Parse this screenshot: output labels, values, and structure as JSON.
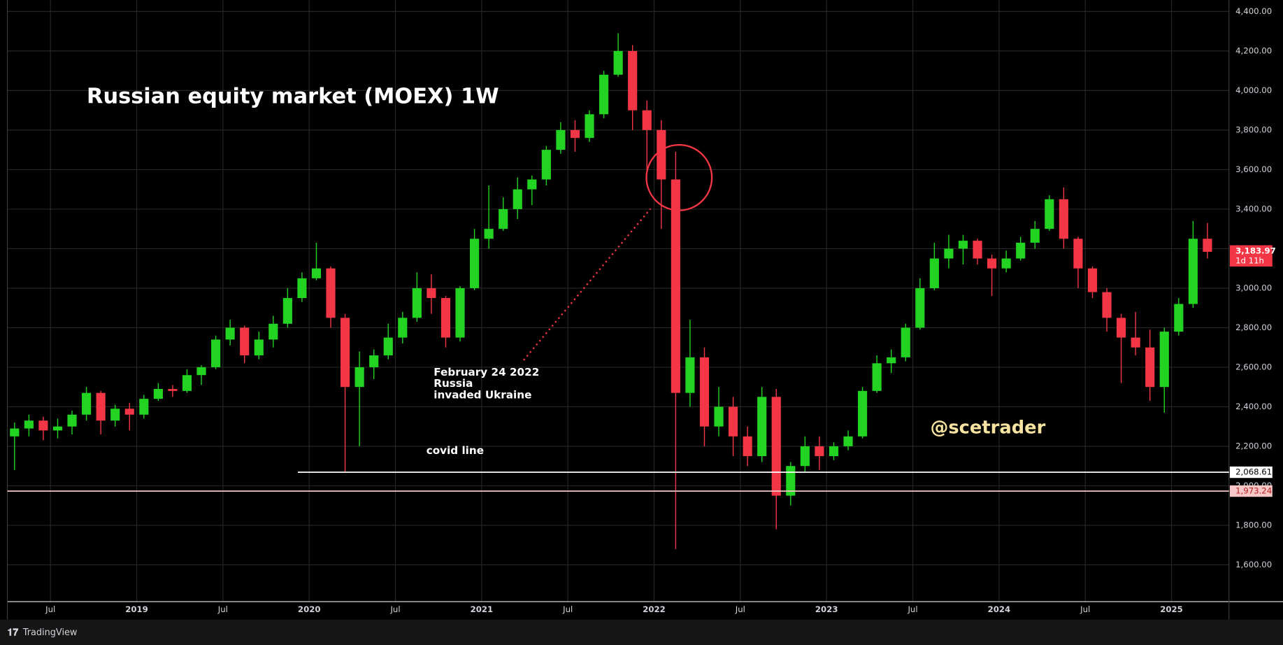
{
  "chart_data": {
    "type": "candlestick",
    "title": "Russian equity market (MOEX) 1W",
    "x": [
      "2018-04",
      "2018-05",
      "2018-06",
      "2018-07",
      "2018-08",
      "2018-09",
      "2018-10",
      "2018-11",
      "2018-12",
      "2019-01",
      "2019-02",
      "2019-03",
      "2019-04",
      "2019-05",
      "2019-06",
      "2019-07",
      "2019-08",
      "2019-09",
      "2019-10",
      "2019-11",
      "2019-12",
      "2020-01",
      "2020-02",
      "2020-03",
      "2020-04",
      "2020-05",
      "2020-06",
      "2020-07",
      "2020-08",
      "2020-09",
      "2020-10",
      "2020-11",
      "2020-12",
      "2021-01",
      "2021-02",
      "2021-03",
      "2021-04",
      "2021-05",
      "2021-06",
      "2021-07",
      "2021-08",
      "2021-09",
      "2021-10",
      "2021-11",
      "2021-12",
      "2022-01",
      "2022-02",
      "2022-03",
      "2022-04",
      "2022-05",
      "2022-06",
      "2022-07",
      "2022-08",
      "2022-09",
      "2022-10",
      "2022-11",
      "2022-12",
      "2023-01",
      "2023-02",
      "2023-03",
      "2023-04",
      "2023-05",
      "2023-06",
      "2023-07",
      "2023-08",
      "2023-09",
      "2023-10",
      "2023-11",
      "2023-12",
      "2024-01",
      "2024-02",
      "2024-03",
      "2024-04",
      "2024-05",
      "2024-06",
      "2024-07",
      "2024-08",
      "2024-09",
      "2024-10",
      "2024-11",
      "2024-12",
      "2025-01",
      "2025-02",
      "2025-03"
    ],
    "open": [
      2250,
      2290,
      2330,
      2280,
      2300,
      2360,
      2470,
      2330,
      2390,
      2360,
      2440,
      2490,
      2480,
      2560,
      2600,
      2740,
      2800,
      2660,
      2740,
      2820,
      2950,
      3050,
      3100,
      2850,
      2500,
      2600,
      2660,
      2750,
      2850,
      3000,
      2950,
      2750,
      3000,
      3250,
      3300,
      3400,
      3500,
      3550,
      3700,
      3800,
      3760,
      3880,
      4080,
      4200,
      3900,
      3800,
      3550,
      2470,
      2650,
      2300,
      2400,
      2250,
      2150,
      2450,
      1950,
      2100,
      2200,
      2150,
      2200,
      2250,
      2480,
      2620,
      2650,
      2800,
      3000,
      3150,
      3200,
      3240,
      3150,
      3100,
      3150,
      3230,
      3300,
      3450,
      3250,
      3100,
      2980,
      2850,
      2750,
      2700,
      2500,
      2780,
      2920,
      3250
    ],
    "high": [
      2320,
      2360,
      2350,
      2340,
      2380,
      2500,
      2480,
      2410,
      2420,
      2460,
      2520,
      2510,
      2590,
      2610,
      2760,
      2840,
      2810,
      2780,
      2860,
      3000,
      3080,
      3230,
      3110,
      2870,
      2680,
      2690,
      2820,
      2880,
      3080,
      3070,
      2960,
      3010,
      3300,
      3520,
      3460,
      3560,
      3570,
      3720,
      3840,
      3850,
      3900,
      4100,
      4290,
      4230,
      3950,
      3850,
      3690,
      2840,
      2700,
      2500,
      2450,
      2300,
      2500,
      2490,
      2120,
      2250,
      2250,
      2220,
      2280,
      2500,
      2660,
      2690,
      2820,
      3050,
      3230,
      3270,
      3270,
      3250,
      3170,
      3190,
      3260,
      3340,
      3470,
      3510,
      3260,
      3110,
      3000,
      2870,
      2880,
      2790,
      2800,
      2950,
      3340,
      3330
    ],
    "low": [
      2080,
      2250,
      2230,
      2240,
      2260,
      2330,
      2260,
      2300,
      2280,
      2340,
      2430,
      2450,
      2470,
      2510,
      2590,
      2710,
      2620,
      2640,
      2700,
      2800,
      2930,
      3040,
      2800,
      2070,
      2200,
      2540,
      2640,
      2720,
      2830,
      2870,
      2700,
      2730,
      2990,
      3200,
      3290,
      3350,
      3420,
      3520,
      3680,
      3690,
      3740,
      3860,
      4070,
      3800,
      3580,
      3300,
      1680,
      2400,
      2200,
      2250,
      2150,
      2100,
      2120,
      1780,
      1900,
      2070,
      2080,
      2130,
      2180,
      2240,
      2470,
      2570,
      2630,
      2790,
      2990,
      3100,
      3120,
      3120,
      2960,
      3080,
      3140,
      3200,
      3290,
      3200,
      3000,
      2950,
      2780,
      2520,
      2660,
      2430,
      2370,
      2760,
      2900,
      3150
    ],
    "close": [
      2290,
      2330,
      2280,
      2300,
      2360,
      2470,
      2330,
      2390,
      2360,
      2440,
      2490,
      2480,
      2560,
      2600,
      2740,
      2800,
      2660,
      2740,
      2820,
      2950,
      3050,
      3100,
      2850,
      2500,
      2600,
      2660,
      2750,
      2850,
      3000,
      2950,
      2750,
      3000,
      3250,
      3300,
      3400,
      3500,
      3550,
      3700,
      3800,
      3760,
      3880,
      4080,
      4200,
      3900,
      3800,
      3550,
      2470,
      2650,
      2300,
      2400,
      2250,
      2150,
      2450,
      1950,
      2100,
      2200,
      2150,
      2200,
      2250,
      2480,
      2620,
      2650,
      2800,
      3000,
      3150,
      3200,
      3240,
      3150,
      3100,
      3150,
      3230,
      3300,
      3450,
      3250,
      3100,
      2980,
      2850,
      2750,
      2700,
      2500,
      2780,
      2920,
      3250,
      3183.97
    ],
    "up_color": "#22d322",
    "down_color": "#f23645",
    "xlim": [
      "2018-04",
      "2025-05"
    ],
    "xticks": [
      {
        "value": "2018-07",
        "label": "Jul"
      },
      {
        "value": "2019-01",
        "label": "2019"
      },
      {
        "value": "2019-07",
        "label": "Jul"
      },
      {
        "value": "2020-01",
        "label": "2020"
      },
      {
        "value": "2020-07",
        "label": "Jul"
      },
      {
        "value": "2021-01",
        "label": "2021"
      },
      {
        "value": "2021-07",
        "label": "Jul"
      },
      {
        "value": "2022-01",
        "label": "2022"
      },
      {
        "value": "2022-07",
        "label": "Jul"
      },
      {
        "value": "2023-01",
        "label": "2023"
      },
      {
        "value": "2023-07",
        "label": "Jul"
      },
      {
        "value": "2024-01",
        "label": "2024"
      },
      {
        "value": "2024-07",
        "label": "Jul"
      },
      {
        "value": "2025-01",
        "label": "2025"
      }
    ],
    "ylim": [
      1414,
      4458
    ],
    "yticks": [
      {
        "value": 1600,
        "label": "1,600.00"
      },
      {
        "value": 1800,
        "label": "1,800.00"
      },
      {
        "value": 2000,
        "label": "2,000.00"
      },
      {
        "value": 2200,
        "label": "2,200.00"
      },
      {
        "value": 2400,
        "label": "2,400.00"
      },
      {
        "value": 2600,
        "label": "2,600.00"
      },
      {
        "value": 2800,
        "label": "2,800.00"
      },
      {
        "value": 3000,
        "label": "3,000.00"
      },
      {
        "value": 3200,
        "label": "3,200.00"
      },
      {
        "value": 3400,
        "label": "3,400.00"
      },
      {
        "value": 3600,
        "label": "3,600.00"
      },
      {
        "value": 3800,
        "label": "3,800.00"
      },
      {
        "value": 4000,
        "label": "4,000.00"
      },
      {
        "value": 4200,
        "label": "4,200.00"
      },
      {
        "value": 4400,
        "label": "4,400.00"
      }
    ],
    "grid": true,
    "hlines": [
      {
        "value": 2068.61,
        "label": "2,068.61",
        "color": "#ffffff"
      },
      {
        "value": 1973.24,
        "label": "1,973.24",
        "color": "#f7c6c6"
      }
    ],
    "last_price": {
      "value": 3183.97,
      "label": "3,183.97",
      "countdown": "1d 11h"
    },
    "annotations": {
      "event": [
        "February 24 2022",
        "Russia",
        "invaded Ukraine"
      ],
      "covid": "covid line",
      "watermark": "@scetrader"
    },
    "brand": "TradingView"
  }
}
